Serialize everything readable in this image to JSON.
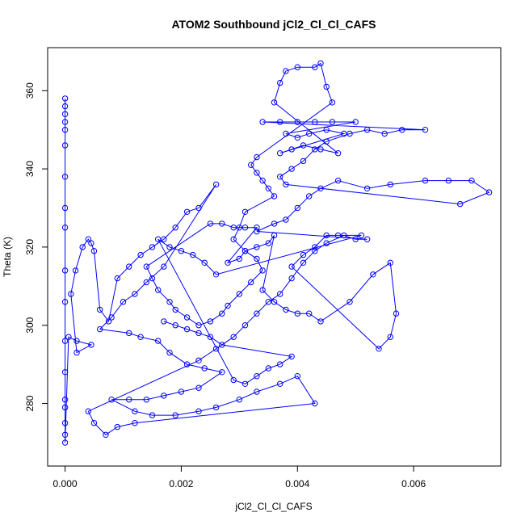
{
  "chart_data": {
    "type": "scatter",
    "title": "ATOM2 Southbound jCl2_Cl_Cl_CAFS",
    "xlabel": "jCl2_Cl_Cl_CAFS",
    "ylabel": "Theta (K)",
    "xlim": [
      -0.0003,
      0.0075
    ],
    "ylim": [
      264,
      371
    ],
    "x_ticks": [
      "0.000",
      "0.002",
      "0.004",
      "0.006"
    ],
    "x_tick_values": [
      0,
      0.002,
      0.004,
      0.006
    ],
    "y_ticks": [
      "280",
      "300",
      "320",
      "340",
      "360"
    ],
    "y_tick_values": [
      280,
      300,
      320,
      340,
      360
    ],
    "series_color": "#0000ff",
    "marker": "open-circle",
    "connected": true,
    "series": [
      {
        "values": [
          [
            0.0,
            358
          ],
          [
            0.0,
            356
          ],
          [
            0.0,
            354
          ],
          [
            0.0,
            352
          ],
          [
            0.0,
            350
          ],
          [
            0.0,
            346
          ],
          [
            0.0,
            338
          ],
          [
            0.0,
            330
          ],
          [
            0.0,
            325
          ],
          [
            0.0,
            314
          ],
          [
            0.0,
            306
          ],
          [
            0.0,
            296
          ],
          [
            0.0,
            288
          ],
          [
            0.0,
            281
          ],
          [
            0.0,
            279
          ],
          [
            0.0,
            275
          ],
          [
            0.0,
            272
          ],
          [
            0.0,
            270
          ],
          [
            6e-05,
            297
          ],
          [
            0.0002,
            296
          ],
          [
            0.00045,
            295
          ],
          [
            0.0002,
            293
          ],
          [
            0.0001,
            308
          ],
          [
            0.00018,
            314
          ],
          [
            0.0003,
            320
          ],
          [
            0.0004,
            322
          ],
          [
            0.00045,
            321
          ],
          [
            0.0005,
            319
          ],
          [
            0.0006,
            304
          ],
          [
            0.00075,
            301
          ],
          [
            0.0009,
            312
          ],
          [
            0.0011,
            315
          ],
          [
            0.0013,
            318
          ],
          [
            0.0015,
            320
          ],
          [
            0.0017,
            322
          ],
          [
            0.0019,
            325
          ],
          [
            0.0021,
            329
          ],
          [
            0.0023,
            330
          ],
          [
            0.0026,
            336
          ],
          [
            0.0017,
            315
          ],
          [
            0.0014,
            311
          ],
          [
            0.0012,
            308
          ],
          [
            0.001,
            306
          ],
          [
            0.0008,
            302
          ],
          [
            0.0006,
            299
          ],
          [
            0.0011,
            298
          ],
          [
            0.0013,
            297
          ],
          [
            0.0016,
            296
          ],
          [
            0.0018,
            293
          ],
          [
            0.0021,
            290
          ],
          [
            0.0024,
            289
          ],
          [
            0.0027,
            288
          ],
          [
            0.0023,
            284
          ],
          [
            0.002,
            283
          ],
          [
            0.0017,
            282
          ],
          [
            0.0014,
            281
          ],
          [
            0.0011,
            281
          ],
          [
            0.0008,
            281
          ],
          [
            0.0012,
            278
          ],
          [
            0.0015,
            277
          ],
          [
            0.0019,
            277
          ],
          [
            0.0023,
            278
          ],
          [
            0.0026,
            279
          ],
          [
            0.003,
            281
          ],
          [
            0.0033,
            283
          ],
          [
            0.0037,
            285
          ],
          [
            0.004,
            287
          ],
          [
            0.0043,
            280
          ],
          [
            0.0012,
            275
          ],
          [
            0.0009,
            274
          ],
          [
            0.0007,
            272
          ],
          [
            0.0005,
            275
          ],
          [
            0.0004,
            278
          ],
          [
            0.0023,
            291
          ],
          [
            0.0026,
            294
          ],
          [
            0.0029,
            297
          ],
          [
            0.0031,
            300
          ],
          [
            0.0033,
            303
          ],
          [
            0.0035,
            306
          ],
          [
            0.0037,
            308
          ],
          [
            0.0039,
            312
          ],
          [
            0.0041,
            316
          ],
          [
            0.0043,
            319
          ],
          [
            0.0045,
            321
          ],
          [
            0.0048,
            323
          ],
          [
            0.005,
            322
          ],
          [
            0.0052,
            322
          ],
          [
            0.0033,
            324
          ],
          [
            0.0036,
            326
          ],
          [
            0.0038,
            327
          ],
          [
            0.004,
            330
          ],
          [
            0.0042,
            333
          ],
          [
            0.0044,
            335
          ],
          [
            0.0047,
            337
          ],
          [
            0.0052,
            335
          ],
          [
            0.0056,
            336
          ],
          [
            0.0062,
            337
          ],
          [
            0.0066,
            337
          ],
          [
            0.007,
            337
          ],
          [
            0.0073,
            334
          ],
          [
            0.0068,
            331
          ],
          [
            0.0038,
            336
          ],
          [
            0.0037,
            338
          ],
          [
            0.0039,
            340
          ],
          [
            0.0041,
            342
          ],
          [
            0.0043,
            345
          ],
          [
            0.0045,
            347
          ],
          [
            0.0049,
            349
          ],
          [
            0.0052,
            350
          ],
          [
            0.0055,
            349
          ],
          [
            0.0058,
            350
          ],
          [
            0.0062,
            350
          ],
          [
            0.0034,
            352
          ],
          [
            0.0037,
            352
          ],
          [
            0.004,
            352
          ],
          [
            0.0043,
            352
          ],
          [
            0.0046,
            352
          ],
          [
            0.005,
            352
          ],
          [
            0.0038,
            349
          ],
          [
            0.004,
            348
          ],
          [
            0.0042,
            349
          ],
          [
            0.0045,
            350
          ],
          [
            0.0048,
            349
          ],
          [
            0.0037,
            344
          ],
          [
            0.0039,
            345
          ],
          [
            0.0041,
            346
          ],
          [
            0.0044,
            345
          ],
          [
            0.0047,
            344
          ],
          [
            0.0036,
            357
          ],
          [
            0.0037,
            362
          ],
          [
            0.0038,
            365
          ],
          [
            0.004,
            366
          ],
          [
            0.0043,
            366
          ],
          [
            0.0044,
            367
          ],
          [
            0.0045,
            361
          ],
          [
            0.0046,
            357
          ],
          [
            0.0033,
            343
          ],
          [
            0.0032,
            341
          ],
          [
            0.0033,
            339
          ],
          [
            0.0034,
            337
          ],
          [
            0.0035,
            335
          ],
          [
            0.0036,
            333
          ],
          [
            0.0031,
            329
          ],
          [
            0.003,
            325
          ],
          [
            0.0029,
            322
          ],
          [
            0.0031,
            319
          ],
          [
            0.0033,
            317
          ],
          [
            0.0034,
            314
          ],
          [
            0.0032,
            311
          ],
          [
            0.003,
            308
          ],
          [
            0.0028,
            305
          ],
          [
            0.0027,
            303
          ],
          [
            0.0025,
            301
          ],
          [
            0.0023,
            300
          ],
          [
            0.0021,
            302
          ],
          [
            0.0019,
            304
          ],
          [
            0.0018,
            306
          ],
          [
            0.0016,
            309
          ],
          [
            0.0015,
            312
          ],
          [
            0.0014,
            315
          ],
          [
            0.0025,
            326
          ],
          [
            0.0027,
            326
          ],
          [
            0.0029,
            325
          ],
          [
            0.0031,
            325
          ],
          [
            0.0033,
            325
          ],
          [
            0.0028,
            316
          ],
          [
            0.003,
            317
          ],
          [
            0.0031,
            319
          ],
          [
            0.0033,
            320
          ],
          [
            0.0035,
            321
          ],
          [
            0.0036,
            323
          ],
          [
            0.0034,
            309
          ],
          [
            0.0036,
            306
          ],
          [
            0.0038,
            304
          ],
          [
            0.004,
            303
          ],
          [
            0.0042,
            303
          ],
          [
            0.0044,
            301
          ],
          [
            0.0049,
            306
          ],
          [
            0.0053,
            313
          ],
          [
            0.0056,
            316
          ],
          [
            0.0057,
            303
          ],
          [
            0.0056,
            297
          ],
          [
            0.0054,
            294
          ],
          [
            0.0039,
            315
          ],
          [
            0.0041,
            318
          ],
          [
            0.0043,
            320
          ],
          [
            0.0045,
            323
          ],
          [
            0.0047,
            323
          ],
          [
            0.0051,
            323
          ],
          [
            0.0026,
            313
          ],
          [
            0.0024,
            316
          ],
          [
            0.0022,
            318
          ],
          [
            0.002,
            319
          ],
          [
            0.0018,
            320
          ],
          [
            0.0016,
            322
          ],
          [
            0.0029,
            286
          ],
          [
            0.0031,
            285
          ],
          [
            0.0033,
            287
          ],
          [
            0.0035,
            289
          ],
          [
            0.0037,
            290
          ],
          [
            0.0039,
            292
          ],
          [
            0.0027,
            295
          ],
          [
            0.0025,
            297
          ],
          [
            0.0023,
            298
          ],
          [
            0.0021,
            299
          ],
          [
            0.0019,
            300
          ],
          [
            0.0017,
            301
          ]
        ]
      }
    ]
  }
}
